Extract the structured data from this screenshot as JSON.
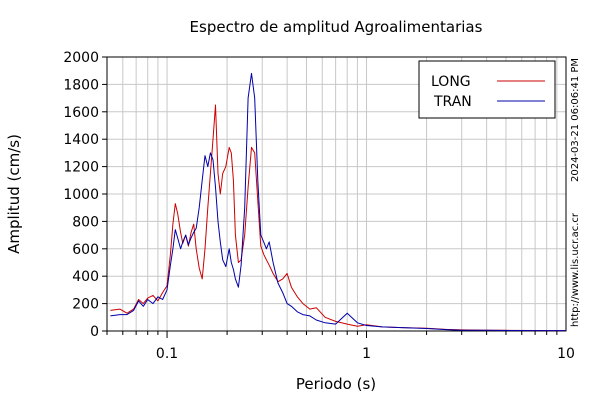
{
  "chart_data": {
    "type": "line",
    "title": "Espectro de amplitud Agroalimentarias",
    "xlabel": "Periodo (s)",
    "ylabel": "Amplitud (cm/s)",
    "xscale": "log",
    "xlim": [
      0.05,
      10
    ],
    "ylim": [
      0,
      2000
    ],
    "xticks": [
      0.1,
      1,
      10
    ],
    "xtick_labels": [
      "0.1",
      "1",
      "10"
    ],
    "yticks": [
      0,
      200,
      400,
      600,
      800,
      1000,
      1200,
      1400,
      1600,
      1800,
      2000
    ],
    "ytick_labels": [
      "0",
      "200",
      "400",
      "600",
      "800",
      "1000",
      "1200",
      "1400",
      "1600",
      "1800",
      "2000"
    ],
    "grid": true,
    "legend_position": "top-right",
    "timestamp": "2024-03-21 06:06:41 PM",
    "url": "http://www.lis.ucr.ac.cr",
    "series": [
      {
        "name": "LONG",
        "color": "#cc0000",
        "x": [
          0.052,
          0.058,
          0.063,
          0.068,
          0.072,
          0.076,
          0.08,
          0.085,
          0.09,
          0.095,
          0.1,
          0.104,
          0.107,
          0.11,
          0.113,
          0.117,
          0.12,
          0.124,
          0.128,
          0.132,
          0.136,
          0.14,
          0.145,
          0.15,
          0.155,
          0.16,
          0.165,
          0.17,
          0.175,
          0.18,
          0.185,
          0.19,
          0.197,
          0.205,
          0.21,
          0.215,
          0.22,
          0.228,
          0.235,
          0.245,
          0.255,
          0.265,
          0.275,
          0.285,
          0.295,
          0.305,
          0.315,
          0.325,
          0.34,
          0.36,
          0.38,
          0.4,
          0.42,
          0.45,
          0.48,
          0.52,
          0.56,
          0.62,
          0.7,
          0.8,
          0.9,
          1.0,
          1.2,
          1.5,
          2.0,
          2.5,
          3.0,
          4.0,
          5.0,
          7.0,
          10.0
        ],
        "y": [
          150,
          160,
          130,
          160,
          230,
          200,
          240,
          260,
          220,
          280,
          330,
          560,
          780,
          930,
          860,
          720,
          640,
          700,
          620,
          720,
          780,
          600,
          460,
          380,
          600,
          900,
          1150,
          1400,
          1650,
          1150,
          1000,
          1150,
          1200,
          1340,
          1300,
          1100,
          700,
          500,
          520,
          700,
          1050,
          1340,
          1300,
          950,
          620,
          560,
          520,
          480,
          420,
          360,
          380,
          420,
          320,
          250,
          200,
          160,
          170,
          100,
          70,
          50,
          35,
          45,
          30,
          25,
          20,
          12,
          8,
          6,
          5,
          4,
          3
        ]
      },
      {
        "name": "TRAN",
        "color": "#0000aa",
        "x": [
          0.052,
          0.058,
          0.063,
          0.068,
          0.072,
          0.076,
          0.08,
          0.085,
          0.09,
          0.095,
          0.1,
          0.104,
          0.107,
          0.11,
          0.113,
          0.117,
          0.12,
          0.124,
          0.128,
          0.132,
          0.136,
          0.14,
          0.145,
          0.15,
          0.155,
          0.16,
          0.165,
          0.17,
          0.175,
          0.18,
          0.185,
          0.19,
          0.197,
          0.205,
          0.21,
          0.215,
          0.22,
          0.228,
          0.235,
          0.245,
          0.255,
          0.265,
          0.275,
          0.285,
          0.295,
          0.305,
          0.315,
          0.325,
          0.34,
          0.36,
          0.38,
          0.4,
          0.42,
          0.45,
          0.48,
          0.52,
          0.56,
          0.62,
          0.7,
          0.8,
          0.9,
          1.0,
          1.2,
          1.5,
          2.0,
          2.5,
          3.0,
          4.0,
          5.0,
          7.0,
          10.0
        ],
        "y": [
          110,
          120,
          120,
          150,
          220,
          180,
          230,
          200,
          250,
          230,
          300,
          480,
          600,
          740,
          680,
          600,
          650,
          700,
          630,
          680,
          720,
          750,
          900,
          1100,
          1280,
          1200,
          1300,
          1250,
          1050,
          800,
          650,
          520,
          470,
          600,
          500,
          450,
          380,
          320,
          480,
          900,
          1700,
          1880,
          1700,
          1100,
          700,
          650,
          600,
          650,
          500,
          350,
          280,
          200,
          180,
          140,
          120,
          110,
          80,
          60,
          50,
          130,
          60,
          40,
          30,
          25,
          18,
          10,
          6,
          5,
          4,
          3,
          3
        ]
      }
    ]
  }
}
